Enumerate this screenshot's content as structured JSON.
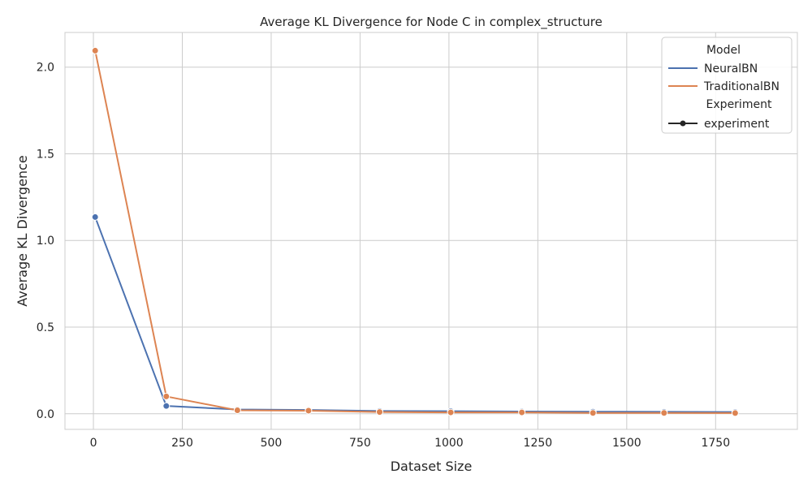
{
  "chart_data": {
    "type": "line",
    "title": "Average KL Divergence for Node C in complex_structure",
    "xlabel": "Dataset Size",
    "ylabel": "Average KL Divergence",
    "xlim": [
      -80,
      1980
    ],
    "ylim": [
      -0.09,
      2.2
    ],
    "xticks": [
      0,
      250,
      500,
      750,
      1000,
      1250,
      1500,
      1750
    ],
    "xtick_labels": [
      "0",
      "250",
      "500",
      "750",
      "1000",
      "1250",
      "1500",
      "1750"
    ],
    "yticks": [
      0.0,
      0.5,
      1.0,
      1.5,
      2.0
    ],
    "ytick_labels": [
      "0.0",
      "0.5",
      "1.0",
      "1.5",
      "2.0"
    ],
    "grid": true,
    "legend_position": "top-right",
    "legend": {
      "model_heading": "Model",
      "experiment_heading": "Experiment",
      "experiment_entry": "experiment"
    },
    "x": [
      5,
      205,
      405,
      605,
      805,
      1005,
      1205,
      1405,
      1605,
      1805
    ],
    "series": [
      {
        "name": "NeuralBN",
        "color": "#4c72b0",
        "values": [
          1.135,
          0.045,
          0.025,
          0.022,
          0.016,
          0.015,
          0.013,
          0.012,
          0.011,
          0.01
        ]
      },
      {
        "name": "TraditionalBN",
        "color": "#dd8452",
        "values": [
          2.095,
          0.1,
          0.02,
          0.018,
          0.01,
          0.008,
          0.008,
          0.005,
          0.005,
          0.004
        ]
      }
    ]
  }
}
